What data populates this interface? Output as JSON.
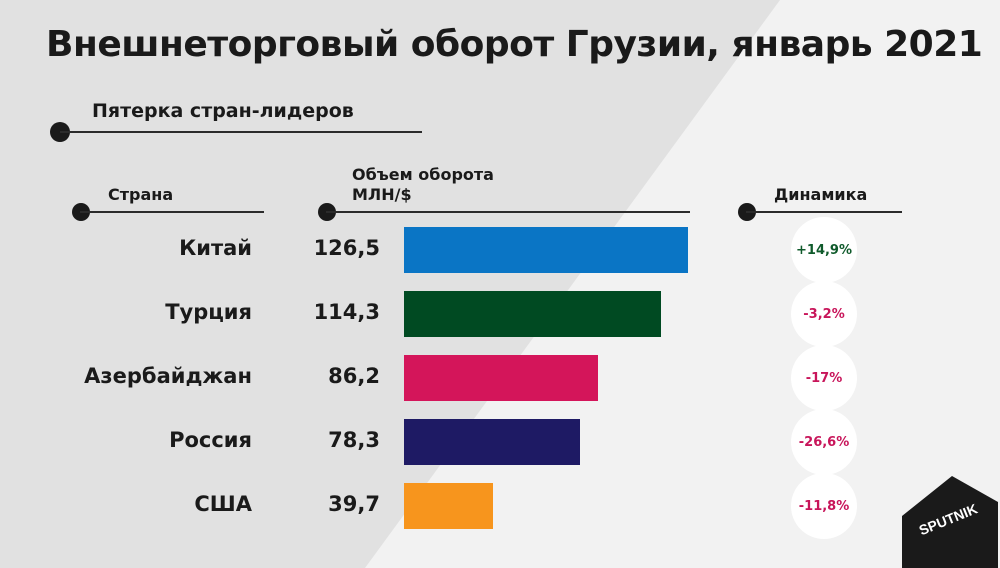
{
  "chart_data": {
    "type": "bar",
    "orientation": "horizontal",
    "title": "Внешнеторговый оборот Грузии, январь 2021",
    "subtitle": "Пятерка стран-лидеров",
    "columns": {
      "country": "Страна",
      "volume": "Объем оборота МЛН/$",
      "volume_line1": "Объем оборота",
      "volume_line2": "МЛН/$",
      "dynamics": "Динамика"
    },
    "categories": [
      "Китай",
      "Турция",
      "Азербайджан",
      "Россия",
      "США"
    ],
    "values": [
      126.5,
      114.3,
      86.2,
      78.3,
      39.7
    ],
    "value_labels": [
      "126,5",
      "114,3",
      "86,2",
      "78,3",
      "39,7"
    ],
    "dynamics": [
      "+14,9%",
      "-3,2%",
      "-17%",
      "-26,6%",
      "-11,8%"
    ],
    "bar_colors": [
      "#0a75c5",
      "#004a22",
      "#d4155a",
      "#1e1a64",
      "#f7951d"
    ],
    "dynamics_colors": {
      "positive": "#0f5a2b",
      "negative": "#c8155a"
    },
    "xlim": [
      0,
      126.5
    ],
    "grid": false,
    "legend": "none"
  },
  "logo": {
    "text": "SPUTNIK",
    "icon": "sputnik-logo-icon"
  }
}
